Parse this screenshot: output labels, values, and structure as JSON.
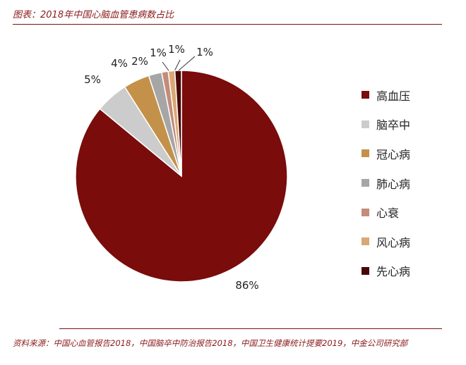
{
  "header": {
    "title": "图表：2018年中国心脑血管患病数占比"
  },
  "footer": {
    "source": "资料来源：中国心血管报告2018，中国脑卒中防治报告2018，中国卫生健康统计提要2019，中金公司研究部"
  },
  "chart_data": {
    "type": "pie",
    "title": "",
    "legend_position": "right",
    "slices": [
      {
        "name": "高血压",
        "value": 86,
        "label": "86%",
        "color": "#7a0c0c"
      },
      {
        "name": "脑卒中",
        "value": 5,
        "label": "5%",
        "color": "#cccccc"
      },
      {
        "name": "冠心病",
        "value": 4,
        "label": "4%",
        "color": "#c4914a"
      },
      {
        "name": "肺心病",
        "value": 2,
        "label": "2%",
        "color": "#a6a6a6"
      },
      {
        "name": "心衰",
        "value": 1,
        "label": "1%",
        "color": "#c48b7a"
      },
      {
        "name": "风心病",
        "value": 1,
        "label": "1%",
        "color": "#d9a874"
      },
      {
        "name": "先心病",
        "value": 1,
        "label": "1%",
        "color": "#4a0606"
      }
    ]
  }
}
